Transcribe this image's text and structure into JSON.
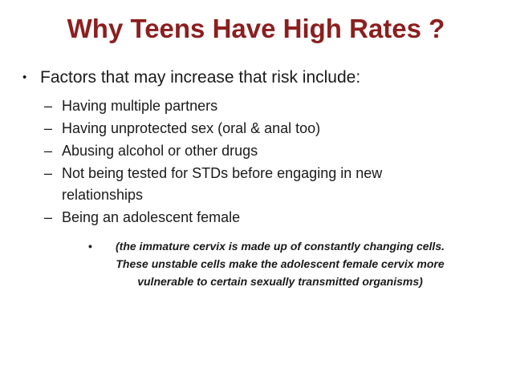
{
  "slide": {
    "title": "Why Teens Have High Rates ?",
    "title_color": "#8b1f1f",
    "body_color": "#1a1a1a",
    "background_color": "#ffffff",
    "bullet_char": "•",
    "dash_char": "–",
    "main_bullet": "Factors that may increase that risk include:",
    "sub_bullets": [
      "Having multiple partners",
      "Having unprotected sex (oral & anal too)",
      "Abusing alcohol or other drugs",
      "Not being tested for STDs before engaging in new relationships",
      "Being an adolescent female"
    ],
    "note": "(the immature cervix is made up of constantly changing cells. These unstable cells make the adolescent female cervix more vulnerable to certain sexually transmitted organisms)"
  }
}
